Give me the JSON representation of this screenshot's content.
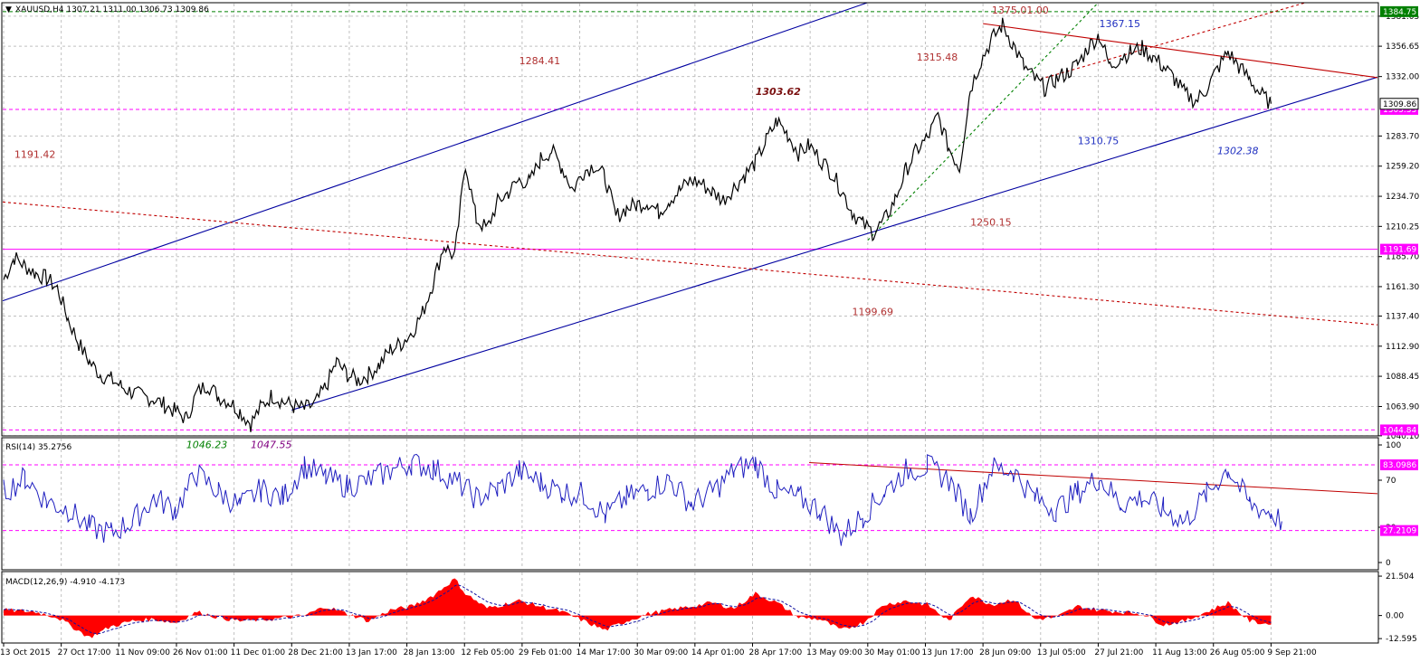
{
  "chart_data": {
    "type": "line",
    "title": "XAUUSD,H4",
    "symbol": "XAUUSD",
    "timeframe": "H4",
    "ohlc": {
      "open": "1307.21",
      "high": "1311.00",
      "low": "1306.73",
      "close": "1309.86"
    },
    "header_text": "XAUUSD,H4  1307.21 1311.00 1306.73 1309.86",
    "x_ticks": [
      "13 Oct 2015",
      "27 Oct 17:00",
      "11 Nov 09:00",
      "26 Nov 01:00",
      "11 Dec 01:00",
      "28 Dec 21:00",
      "13 Jan 17:00",
      "28 Jan 13:00",
      "12 Feb 05:00",
      "29 Feb 01:00",
      "14 Mar 17:00",
      "30 Mar 09:00",
      "14 Apr 01:00",
      "28 Apr 17:00",
      "13 May 09:00",
      "30 May 01:00",
      "13 Jun 17:00",
      "28 Jun 09:00",
      "13 Jul 05:00",
      "27 Jul 21:00",
      "11 Aug 13:00",
      "26 Aug 05:00",
      "9 Sep 21:00"
    ],
    "price_pane": {
      "ylim": [
        1040.0,
        1392.0
      ],
      "y_ticks": [
        "1381.05",
        "1356.65",
        "1332.00",
        "1283.70",
        "1259.20",
        "1234.70",
        "1210.25",
        "1185.70",
        "1161.30",
        "1137.40",
        "1112.90",
        "1088.45",
        "1063.90",
        "1040.10"
      ],
      "current_price_label": "1309.86",
      "price_series_anchors": [
        [
          0,
          1167
        ],
        [
          1,
          1185
        ],
        [
          2,
          1178
        ],
        [
          3,
          1172
        ],
        [
          4,
          1168
        ],
        [
          5,
          1160
        ],
        [
          6,
          1135
        ],
        [
          7,
          1115
        ],
        [
          8,
          1100
        ],
        [
          9,
          1090
        ],
        [
          10,
          1086
        ],
        [
          11,
          1080
        ],
        [
          12,
          1075
        ],
        [
          13,
          1072
        ],
        [
          14,
          1070
        ],
        [
          15,
          1065
        ],
        [
          16,
          1060
        ],
        [
          17,
          1054
        ],
        [
          18,
          1075
        ],
        [
          19,
          1082
        ],
        [
          20,
          1072
        ],
        [
          21,
          1068
        ],
        [
          22,
          1060
        ],
        [
          23,
          1050
        ],
        [
          24,
          1064
        ],
        [
          25,
          1073
        ],
        [
          26,
          1068
        ],
        [
          27,
          1064
        ],
        [
          28,
          1062
        ],
        [
          29,
          1066
        ],
        [
          30,
          1080
        ],
        [
          31,
          1100
        ],
        [
          32,
          1090
        ],
        [
          33,
          1085
        ],
        [
          34,
          1090
        ],
        [
          35,
          1098
        ],
        [
          36,
          1110
        ],
        [
          37,
          1115
        ],
        [
          38,
          1124
        ],
        [
          39,
          1140
        ],
        [
          40,
          1165
        ],
        [
          41,
          1195
        ],
        [
          42,
          1185
        ],
        [
          43,
          1262
        ],
        [
          44,
          1216
        ],
        [
          45,
          1208
        ],
        [
          46,
          1230
        ],
        [
          47,
          1238
        ],
        [
          48,
          1248
        ],
        [
          49,
          1246
        ],
        [
          50,
          1265
        ],
        [
          51,
          1272
        ],
        [
          52,
          1258
        ],
        [
          53,
          1240
        ],
        [
          54,
          1255
        ],
        [
          55,
          1260
        ],
        [
          56,
          1250
        ],
        [
          57,
          1218
        ],
        [
          58,
          1225
        ],
        [
          59,
          1228
        ],
        [
          60,
          1230
        ],
        [
          61,
          1222
        ],
        [
          62,
          1232
        ],
        [
          63,
          1240
        ],
        [
          64,
          1248
        ],
        [
          65,
          1245
        ],
        [
          66,
          1238
        ],
        [
          67,
          1232
        ],
        [
          68,
          1242
        ],
        [
          69,
          1252
        ],
        [
          70,
          1262
        ],
        [
          71,
          1280
        ],
        [
          72,
          1296
        ],
        [
          73,
          1285
        ],
        [
          74,
          1270
        ],
        [
          75,
          1276
        ],
        [
          76,
          1265
        ],
        [
          77,
          1255
        ],
        [
          78,
          1240
        ],
        [
          79,
          1222
        ],
        [
          80,
          1212
        ],
        [
          81,
          1205
        ],
        [
          82,
          1215
        ],
        [
          83,
          1232
        ],
        [
          84,
          1256
        ],
        [
          85,
          1272
        ],
        [
          86,
          1282
        ],
        [
          87,
          1300
        ],
        [
          88,
          1274
        ],
        [
          89,
          1258
        ],
        [
          90,
          1322
        ],
        [
          91,
          1345
        ],
        [
          92,
          1362
        ],
        [
          93,
          1374
        ],
        [
          94,
          1358
        ],
        [
          95,
          1340
        ],
        [
          96,
          1330
        ],
        [
          97,
          1322
        ],
        [
          98,
          1330
        ],
        [
          99,
          1335
        ],
        [
          100,
          1342
        ],
        [
          101,
          1356
        ],
        [
          102,
          1366
        ],
        [
          103,
          1340
        ],
        [
          104,
          1348
        ],
        [
          105,
          1352
        ],
        [
          106,
          1355
        ],
        [
          107,
          1348
        ],
        [
          108,
          1340
        ],
        [
          109,
          1330
        ],
        [
          110,
          1318
        ],
        [
          111,
          1312
        ],
        [
          112,
          1322
        ],
        [
          113,
          1338
        ],
        [
          114,
          1352
        ],
        [
          115,
          1340
        ],
        [
          116,
          1330
        ],
        [
          117,
          1318
        ],
        [
          118,
          1310
        ]
      ],
      "trendlines": [
        {
          "name": "upper-channel",
          "color": "#0000a0",
          "style": "solid",
          "from": [
            "13 Oct 2015",
            1150
          ],
          "to": [
            "28 Jan 13:00",
            1263
          ],
          "extends_to": "top"
        },
        {
          "name": "lower-channel",
          "color": "#0000a0",
          "style": "solid",
          "from": [
            "28 Dec 21:00",
            1061
          ],
          "to": [
            "9 Sep 21:00",
            1305
          ]
        },
        {
          "name": "long-resistance",
          "color": "#c00000",
          "style": "dashed",
          "from": [
            "13 Oct 2015",
            1230
          ],
          "to": [
            "9 Sep 21:00",
            1138
          ]
        },
        {
          "name": "top-resistance",
          "color": "#c00000",
          "style": "solid",
          "from": [
            "28 Jun 09:00",
            1375
          ],
          "to": [
            "9 Sep 21:00",
            1343
          ]
        },
        {
          "name": "rising-support",
          "color": "#c00000",
          "style": "dashed",
          "from": [
            "13 Jul 05:00",
            1330
          ],
          "to": [
            "9 Sep 21:00",
            1384
          ]
        },
        {
          "name": "green-support",
          "color": "#008000",
          "style": "dashed",
          "from": [
            "30 May 01:00",
            1199
          ],
          "to": [
            "27 Jul 21:00",
            1392
          ]
        }
      ],
      "horizontal_levels": [
        {
          "value": 1384.75,
          "label": "1384.75",
          "color": "#008000",
          "style": "dashed",
          "tag_bg": "#008000",
          "tag_fg": "#ffffff"
        },
        {
          "value": 1305.33,
          "label": "1305.33",
          "color": "#ff00ff",
          "style": "dashed",
          "tag_bg": "#ff00ff",
          "tag_fg": "#ffffff"
        },
        {
          "value": 1191.69,
          "label": "1191.69",
          "color": "#ff00ff",
          "style": "solid",
          "tag_bg": "#ff00ff",
          "tag_fg": "#ffffff"
        },
        {
          "value": 1044.84,
          "label": "1044.84",
          "color": "#ff00ff",
          "style": "dashed",
          "tag_bg": "#ff00ff",
          "tag_fg": "#ffffff"
        }
      ],
      "annotations": [
        {
          "text": "1375.01.00",
          "color": "#b03030",
          "italic": false,
          "bold": false,
          "xi": 92,
          "y": 1383
        },
        {
          "text": "1367.15",
          "color": "#2030c0",
          "italic": false,
          "bold": false,
          "xi": 102,
          "y": 1372
        },
        {
          "text": "1284.41",
          "color": "#b03030",
          "italic": false,
          "bold": false,
          "xi": 48,
          "y": 1342
        },
        {
          "text": "1315.48",
          "color": "#b03030",
          "italic": false,
          "bold": false,
          "xi": 85,
          "y": 1345
        },
        {
          "text": "1303.62",
          "color": "#7a1010",
          "italic": true,
          "bold": true,
          "xi": 70,
          "y": 1317
        },
        {
          "text": "1310.75",
          "color": "#2030c0",
          "italic": false,
          "bold": false,
          "xi": 100,
          "y": 1277
        },
        {
          "text": "1302.38",
          "color": "#2030c0",
          "italic": true,
          "bold": false,
          "xi": 113,
          "y": 1269
        },
        {
          "text": "1191.42",
          "color": "#b03030",
          "italic": false,
          "bold": false,
          "xi": 1,
          "y": 1266
        },
        {
          "text": "1250.15",
          "color": "#b03030",
          "italic": false,
          "bold": false,
          "xi": 90,
          "y": 1211
        },
        {
          "text": "1199.69",
          "color": "#b03030",
          "italic": false,
          "bold": false,
          "xi": 79,
          "y": 1138
        },
        {
          "text": "1046.23",
          "color": "#008000",
          "italic": true,
          "bold": false,
          "xi": 17,
          "y": 1030
        },
        {
          "text": "1047.55",
          "color": "#800080",
          "italic": true,
          "bold": false,
          "xi": 23,
          "y": 1030
        }
      ]
    },
    "rsi_pane": {
      "label": "RSI(14) 35.2756",
      "period": 14,
      "value": 35.2756,
      "ylim": [
        0,
        100
      ],
      "y_ticks": [
        "100",
        "70",
        "30",
        "0"
      ],
      "levels": [
        {
          "value": 83.0986,
          "label": "83.0986"
        },
        {
          "value": 27.2109,
          "label": "27.2109"
        }
      ],
      "color": "#2020c0",
      "trendline": {
        "color": "#c00000",
        "from": [
          75,
          85
        ],
        "to": [
          121,
          62
        ]
      },
      "series_anchors": [
        [
          0,
          60
        ],
        [
          2,
          72
        ],
        [
          4,
          52
        ],
        [
          6,
          45
        ],
        [
          8,
          30
        ],
        [
          10,
          25
        ],
        [
          12,
          35
        ],
        [
          14,
          55
        ],
        [
          16,
          45
        ],
        [
          18,
          75
        ],
        [
          20,
          60
        ],
        [
          22,
          48
        ],
        [
          24,
          62
        ],
        [
          26,
          55
        ],
        [
          28,
          82
        ],
        [
          30,
          72
        ],
        [
          32,
          65
        ],
        [
          34,
          70
        ],
        [
          36,
          78
        ],
        [
          38,
          85
        ],
        [
          40,
          80
        ],
        [
          42,
          70
        ],
        [
          44,
          55
        ],
        [
          46,
          62
        ],
        [
          48,
          78
        ],
        [
          50,
          68
        ],
        [
          52,
          60
        ],
        [
          54,
          58
        ],
        [
          56,
          40
        ],
        [
          58,
          55
        ],
        [
          60,
          62
        ],
        [
          62,
          70
        ],
        [
          64,
          50
        ],
        [
          66,
          60
        ],
        [
          68,
          78
        ],
        [
          70,
          85
        ],
        [
          72,
          60
        ],
        [
          74,
          55
        ],
        [
          76,
          45
        ],
        [
          78,
          22
        ],
        [
          80,
          40
        ],
        [
          82,
          60
        ],
        [
          84,
          78
        ],
        [
          86,
          82
        ],
        [
          88,
          70
        ],
        [
          90,
          40
        ],
        [
          92,
          80
        ],
        [
          94,
          78
        ],
        [
          96,
          55
        ],
        [
          98,
          45
        ],
        [
          100,
          60
        ],
        [
          102,
          72
        ],
        [
          104,
          50
        ],
        [
          106,
          55
        ],
        [
          108,
          45
        ],
        [
          110,
          35
        ],
        [
          112,
          58
        ],
        [
          114,
          80
        ],
        [
          116,
          50
        ],
        [
          118,
          42
        ],
        [
          119,
          35
        ]
      ]
    },
    "macd_pane": {
      "label": "MACD(12,26,9) -4.910 -4.173",
      "params": "12,26,9",
      "macd": -4.91,
      "signal": -4.173,
      "ylim": [
        -15,
        24
      ],
      "y_ticks": [
        "21.504",
        "0.00",
        "-12.595"
      ],
      "histogram_color": "#ff0000",
      "signal_color": "#1010a0",
      "series_anchors": [
        [
          0,
          3
        ],
        [
          3,
          2
        ],
        [
          5,
          -1
        ],
        [
          8,
          -12
        ],
        [
          10,
          -6
        ],
        [
          12,
          -3
        ],
        [
          14,
          -2
        ],
        [
          16,
          -4
        ],
        [
          18,
          2
        ],
        [
          20,
          -1
        ],
        [
          22,
          -3
        ],
        [
          25,
          -2
        ],
        [
          28,
          0
        ],
        [
          30,
          5
        ],
        [
          32,
          1
        ],
        [
          34,
          -3
        ],
        [
          36,
          3
        ],
        [
          38,
          5
        ],
        [
          40,
          11
        ],
        [
          42,
          20
        ],
        [
          43,
          12
        ],
        [
          45,
          4
        ],
        [
          48,
          8
        ],
        [
          50,
          5
        ],
        [
          52,
          2
        ],
        [
          54,
          -3
        ],
        [
          56,
          -8
        ],
        [
          58,
          -3
        ],
        [
          60,
          1
        ],
        [
          62,
          3
        ],
        [
          64,
          5
        ],
        [
          66,
          7
        ],
        [
          68,
          4
        ],
        [
          70,
          12
        ],
        [
          72,
          7
        ],
        [
          74,
          -1
        ],
        [
          76,
          -2
        ],
        [
          78,
          -8
        ],
        [
          80,
          -4
        ],
        [
          82,
          6
        ],
        [
          84,
          8
        ],
        [
          86,
          6
        ],
        [
          88,
          -3
        ],
        [
          90,
          11
        ],
        [
          92,
          6
        ],
        [
          94,
          9
        ],
        [
          96,
          -2
        ],
        [
          98,
          -1
        ],
        [
          100,
          5
        ],
        [
          102,
          3
        ],
        [
          104,
          2
        ],
        [
          106,
          1
        ],
        [
          108,
          -5
        ],
        [
          110,
          -3
        ],
        [
          114,
          7
        ],
        [
          116,
          -3
        ],
        [
          118,
          -5
        ]
      ]
    }
  }
}
